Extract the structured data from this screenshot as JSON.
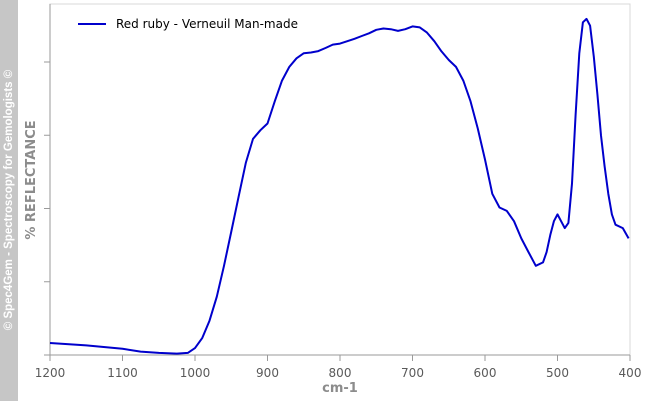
{
  "watermark": "© Spec4Gem - Spectroscopy for Gemologists ©",
  "chart_data": {
    "type": "line",
    "xlabel": "cm-1",
    "ylabel": "% REFLECTANCE",
    "xlim": [
      1200,
      400
    ],
    "x_reversed": true,
    "x_ticks": [
      1200,
      1100,
      1000,
      900,
      800,
      700,
      600,
      500,
      400
    ],
    "ylim": [
      0,
      1
    ],
    "y_tick_labels_shown": false,
    "grid": false,
    "legend": "top-left",
    "color": "#0000cc",
    "series": [
      {
        "name": "Red ruby - Verneuil Man-made",
        "x": [
          1200,
          1150,
          1100,
          1075,
          1050,
          1025,
          1010,
          1000,
          990,
          980,
          970,
          960,
          950,
          940,
          930,
          920,
          910,
          900,
          890,
          880,
          870,
          860,
          850,
          840,
          830,
          820,
          810,
          800,
          790,
          780,
          770,
          760,
          750,
          740,
          730,
          720,
          710,
          700,
          690,
          680,
          670,
          660,
          650,
          640,
          630,
          620,
          610,
          600,
          590,
          580,
          570,
          560,
          550,
          540,
          530,
          520,
          515,
          510,
          505,
          500,
          495,
          490,
          485,
          480,
          475,
          470,
          465,
          460,
          455,
          450,
          445,
          440,
          435,
          430,
          425,
          420,
          410,
          402
        ],
        "y": [
          0.035,
          0.028,
          0.018,
          0.01,
          0.006,
          0.004,
          0.006,
          0.02,
          0.05,
          0.1,
          0.17,
          0.26,
          0.36,
          0.46,
          0.56,
          0.63,
          0.655,
          0.675,
          0.74,
          0.8,
          0.84,
          0.865,
          0.88,
          0.882,
          0.886,
          0.895,
          0.905,
          0.908,
          0.915,
          0.922,
          0.93,
          0.938,
          0.948,
          0.952,
          0.95,
          0.945,
          0.95,
          0.958,
          0.955,
          0.94,
          0.915,
          0.885,
          0.86,
          0.84,
          0.8,
          0.74,
          0.66,
          0.57,
          0.47,
          0.43,
          0.42,
          0.39,
          0.34,
          0.3,
          0.26,
          0.27,
          0.3,
          0.35,
          0.39,
          0.41,
          0.39,
          0.37,
          0.385,
          0.5,
          0.7,
          0.88,
          0.97,
          0.98,
          0.96,
          0.87,
          0.76,
          0.64,
          0.55,
          0.47,
          0.41,
          0.38,
          0.37,
          0.34
        ]
      }
    ]
  }
}
